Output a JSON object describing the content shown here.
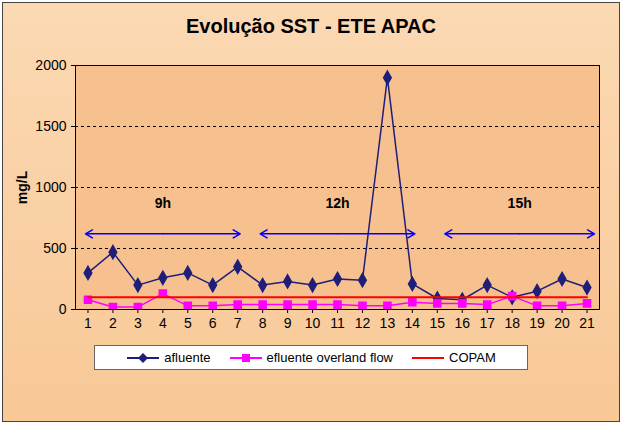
{
  "chart_data": {
    "type": "line",
    "title": "Evolução SST - ETE APAC",
    "y_label": "mg/L",
    "x": [
      1,
      2,
      3,
      4,
      5,
      6,
      7,
      8,
      9,
      10,
      11,
      12,
      13,
      14,
      15,
      16,
      17,
      18,
      19,
      20,
      21
    ],
    "xlim": [
      0.5,
      21.5
    ],
    "xticks": [
      1,
      2,
      3,
      4,
      5,
      6,
      7,
      8,
      9,
      10,
      11,
      12,
      13,
      14,
      15,
      16,
      17,
      18,
      19,
      20,
      21
    ],
    "ylim": [
      0,
      2000
    ],
    "yticks": [
      0,
      500,
      1000,
      1500,
      2000
    ],
    "grid": true,
    "legend": "bottom",
    "series": [
      {
        "name": "afluente",
        "color": "#1f1f7a",
        "marker": "diamond",
        "line_style": "solid",
        "values": [
          300,
          470,
          200,
          260,
          300,
          200,
          350,
          200,
          230,
          200,
          250,
          240,
          1900,
          210,
          90,
          80,
          200,
          100,
          150,
          250,
          180
        ]
      },
      {
        "name": "efluente overland flow",
        "color": "#ff00ff",
        "marker": "square",
        "line_style": "solid",
        "values": [
          80,
          20,
          20,
          130,
          30,
          30,
          40,
          40,
          40,
          40,
          40,
          30,
          30,
          60,
          50,
          50,
          40,
          110,
          30,
          30,
          50
        ]
      },
      {
        "name": "COPAM",
        "color": "#ff0000",
        "marker": "none",
        "line_style": "solid",
        "values": [
          100,
          100,
          100,
          100,
          100,
          100,
          100,
          100,
          100,
          100,
          100,
          100,
          100,
          100,
          100,
          100,
          100,
          100,
          100,
          100,
          100
        ]
      }
    ],
    "annotations": [
      {
        "text": "9h",
        "x_start": 0.9,
        "x_end": 7.1,
        "y": 620
      },
      {
        "text": "12h",
        "x_start": 7.9,
        "x_end": 14.1,
        "y": 620
      },
      {
        "text": "15h",
        "x_start": 15.3,
        "x_end": 21.3,
        "y": 620
      }
    ]
  }
}
